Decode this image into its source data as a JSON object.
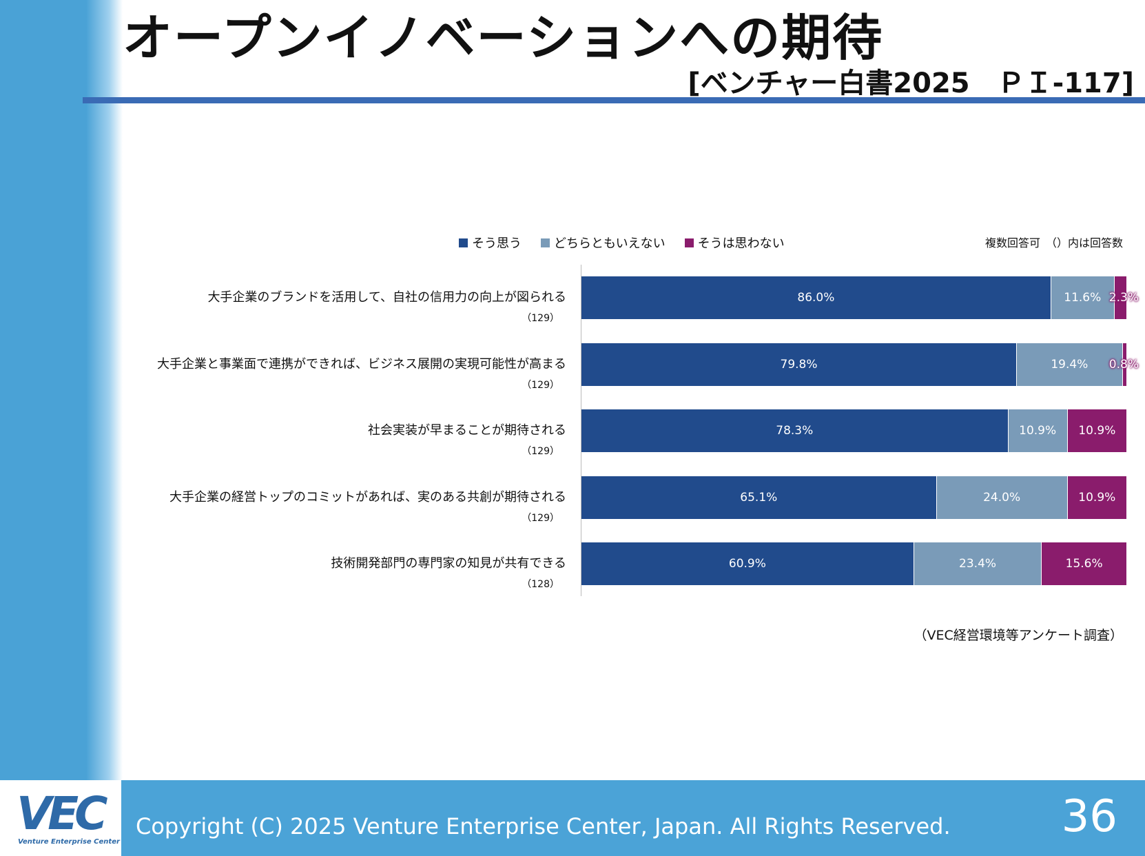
{
  "header": {
    "title": "オープンイノベーションへの期待",
    "subtitle": "[ベンチャー白書2025　ＰＩ-117]"
  },
  "note": "複数回答可　（）内は回答数",
  "source": "（VEC経営環境等アンケート調査）",
  "footer": {
    "logo": "VEC",
    "logo_sub": "Venture Enterprise Center",
    "copyright": "Copyright (C) 2025 Venture Enterprise Center, Japan. All Rights Reserved.",
    "page": "36"
  },
  "chart_data": {
    "type": "bar",
    "stacked": true,
    "orientation": "horizontal",
    "unit": "%",
    "xlim": [
      0,
      100
    ],
    "legend": "top",
    "categories": [
      "大手企業のブランドを活用して、自社の信用力の向上が図られる",
      "大手企業と事業面で連携ができれば、ビジネス展開の実現可能性が高まる",
      "社会実装が早まることが期待される",
      "大手企業の経営トップのコミットがあれば、実のある共創が期待される",
      "技術開発部門の専門家の知見が共有できる"
    ],
    "counts": [
      "（129）",
      "（129）",
      "（129）",
      "（129）",
      "（128）"
    ],
    "series": [
      {
        "name": "そう思う",
        "color": "#214b8c",
        "values": [
          86.0,
          79.8,
          78.3,
          65.1,
          60.9
        ]
      },
      {
        "name": "どちらともいえない",
        "color": "#7a9bb8",
        "values": [
          11.6,
          19.4,
          10.9,
          24.0,
          23.4
        ]
      },
      {
        "name": "そうは思わない",
        "color": "#8a1c6c",
        "values": [
          2.3,
          0.8,
          10.9,
          10.9,
          15.6
        ]
      }
    ]
  }
}
